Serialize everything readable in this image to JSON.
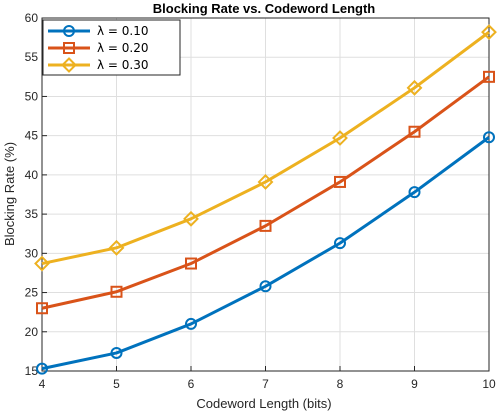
{
  "chart_data": {
    "type": "line",
    "title": "Blocking Rate vs. Codeword Length",
    "xlabel": "Codeword Length (bits)",
    "ylabel": "Blocking Rate (%)",
    "x": [
      4,
      5,
      6,
      7,
      8,
      9,
      10
    ],
    "xlim": [
      4,
      10
    ],
    "ylim": [
      15,
      60
    ],
    "xticks": [
      "4",
      "5",
      "6",
      "7",
      "8",
      "9",
      "10"
    ],
    "yticks": [
      "15",
      "20",
      "25",
      "30",
      "35",
      "40",
      "45",
      "50",
      "55",
      "60"
    ],
    "grid": true,
    "legend_position": "top-left",
    "series": [
      {
        "name": "λ = 0.10",
        "marker": "circle",
        "color": "#0072BD",
        "values": [
          15.3,
          17.3,
          21.0,
          25.8,
          31.3,
          37.8,
          44.8
        ]
      },
      {
        "name": "λ = 0.20",
        "marker": "square",
        "color": "#D95319",
        "values": [
          23.0,
          25.1,
          28.7,
          33.5,
          39.1,
          45.5,
          52.5
        ]
      },
      {
        "name": "λ = 0.30",
        "marker": "diamond",
        "color": "#EDB120",
        "values": [
          28.7,
          30.7,
          34.4,
          39.1,
          44.7,
          51.1,
          58.2
        ]
      }
    ]
  }
}
